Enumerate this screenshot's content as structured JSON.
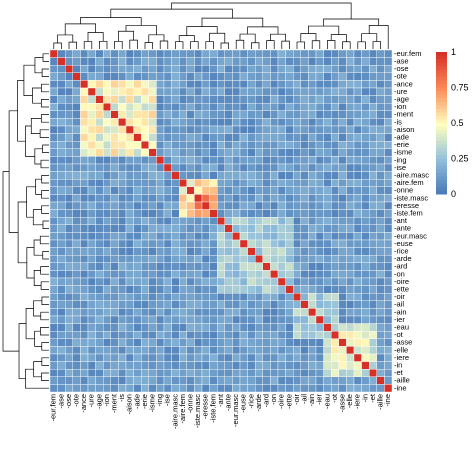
{
  "chart_data": {
    "type": "heatmap",
    "title": "",
    "row_labels": [
      "-eur.fem",
      "-ase",
      "-ose",
      "-ote",
      "-ance",
      "-ure",
      "-age",
      "-ion",
      "-ment",
      "-is",
      "-aison",
      "-ade",
      "-erie",
      "-isme",
      "-ing",
      "-ise",
      "-aire.masc",
      "-aire.fem",
      "-onne",
      "-iste.masc",
      "-eresse",
      "-iste.fem",
      "-ant",
      "-ante",
      "-eur.masc",
      "-euse",
      "-rice",
      "-arde",
      "-ard",
      "-on",
      "-oire",
      "-ette",
      "-oir",
      "-ail",
      "-ain",
      "-ier",
      "-eau",
      "-ot",
      "-asse",
      "-elle",
      "-iere",
      "-in",
      "-et",
      "-aille",
      "-ine"
    ],
    "column_labels": [
      "-eur.fem",
      "-ase",
      "-ose",
      "-ote",
      "-ance",
      "-ure",
      "-age",
      "-ion",
      "-ment",
      "-is",
      "-aison",
      "-ade",
      "-erie",
      "-isme",
      "-ing",
      "-ise",
      "-aire.masc",
      "-aire.fem",
      "-onne",
      "-iste.masc",
      "-eresse",
      "-iste.fem",
      "-ant",
      "-ante",
      "-eur.masc",
      "-euse",
      "-rice",
      "-arde",
      "-ard",
      "-on",
      "-oire",
      "-ette",
      "-oir",
      "-ail",
      "-ain",
      "-ier",
      "-eau",
      "-ot",
      "-asse",
      "-elle",
      "-iere",
      "-in",
      "-et",
      "-aille",
      "-ine"
    ],
    "blocks": [
      {
        "rows": [
          4,
          13
        ],
        "value": 0.55
      },
      {
        "rows": [
          17,
          21
        ],
        "value": 0.6
      },
      {
        "rows": [
          19,
          21
        ],
        "value": 0.98
      },
      {
        "rows": [
          22,
          31
        ],
        "value": 0.35
      },
      {
        "rows": [
          36,
          42
        ],
        "value": 0.5
      },
      {
        "rows": [
          32,
          37
        ],
        "value": 0.35
      }
    ],
    "baseline": 0.05,
    "diagonal": 1,
    "colorbar": {
      "ticks": [
        "0",
        "0.25",
        "0.5",
        "0.75",
        "1"
      ],
      "min": 0,
      "max": 1
    },
    "colors": {
      "low": "#4575b4",
      "mid": "#ffffbf",
      "high": "#d73027"
    },
    "dendrograms": [
      "top",
      "left"
    ]
  }
}
